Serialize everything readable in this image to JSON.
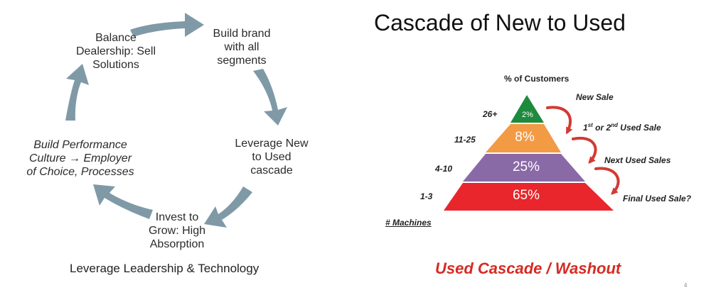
{
  "cycle": {
    "nodes": {
      "balance": [
        "Balance",
        "Dealership: Sell",
        "Solutions"
      ],
      "build_brand": [
        "Build brand",
        "with all",
        "segments"
      ],
      "leverage": [
        "Leverage New",
        "to Used",
        "cascade"
      ],
      "invest": [
        "Invest to",
        "Grow: High",
        "Absorption"
      ],
      "culture": [
        "Build Performance",
        "Culture → Employer",
        "of Choice, Processes"
      ]
    },
    "footer": "Leverage Leadership & Technology",
    "arrow_color": "#7f9aa6"
  },
  "cascade": {
    "title": "Cascade of New to Used",
    "pct_header": "% of Customers",
    "machines_label": "# Machines",
    "tiers": [
      {
        "machines": "26+",
        "pct": "2%",
        "color": "#1e8a3d"
      },
      {
        "machines": "11-25",
        "pct": "8%",
        "color": "#f39a45"
      },
      {
        "machines": "4-10",
        "pct": "25%",
        "color": "#8a6aa6"
      },
      {
        "machines": "1-3",
        "pct": "65%",
        "color": "#e8262b"
      }
    ],
    "sales": {
      "new_sale": "New Sale",
      "used_first_prefix_1": "1",
      "used_first_sup_1": "st",
      "used_first_mid": " or 2",
      "used_first_sup_2": "nd",
      "used_first_suffix": " Used Sale",
      "next": "Next Used Sales",
      "final": "Final Used Sale?"
    },
    "footer": "Used Cascade / Washout",
    "curve_color": "#d23a33"
  },
  "page_number": "4"
}
